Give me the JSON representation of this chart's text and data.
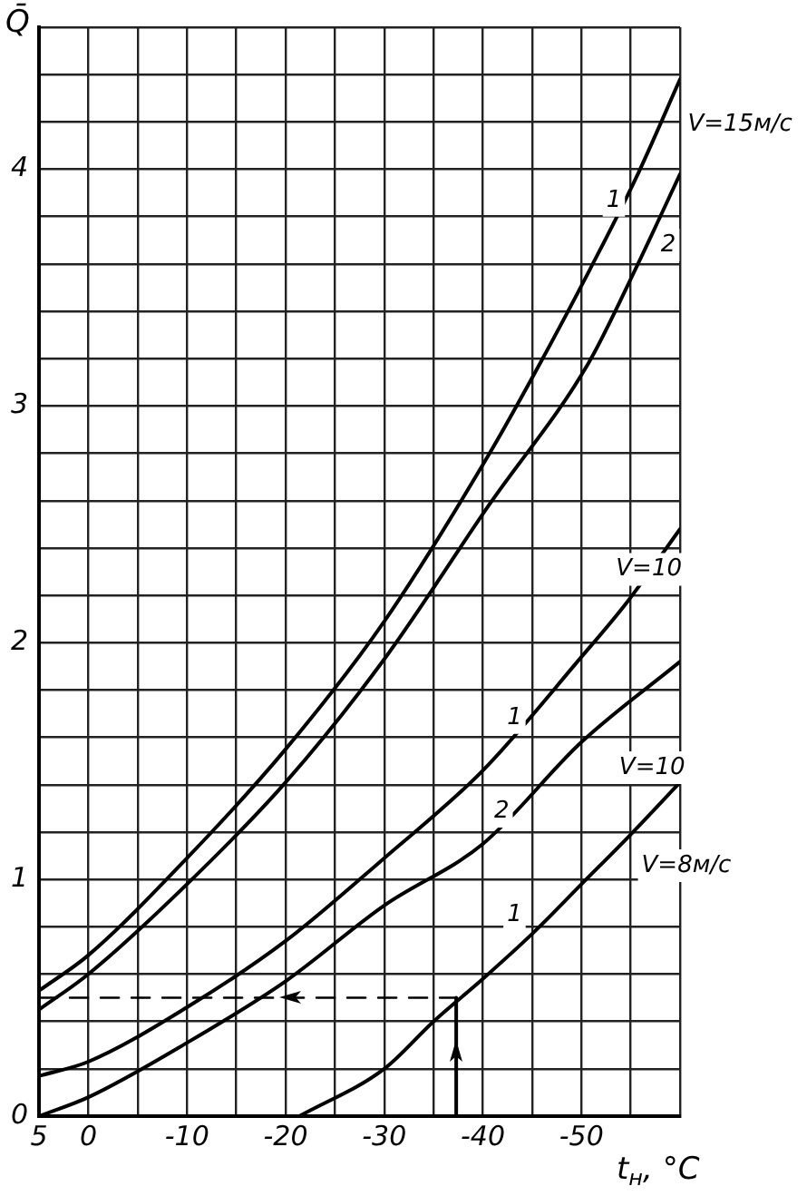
{
  "chart_data": {
    "type": "line",
    "xlabel": "t$_{н}$, °C",
    "ylabel": "Q̄",
    "xlim": [
      5,
      -60
    ],
    "ylim": [
      0,
      4.6
    ],
    "xticks": [
      5,
      0,
      {
        "value": -5,
        "label": null
      },
      -10,
      {
        "value": -15,
        "label": null
      },
      -20,
      {
        "value": -25,
        "label": null
      },
      -30,
      {
        "value": -35,
        "label": null
      },
      -40,
      {
        "value": -45,
        "label": null
      },
      -50,
      {
        "value": -55,
        "label": null
      },
      {
        "value": -60,
        "label": null
      }
    ],
    "yticks": [
      0,
      {
        "value": 0.2,
        "label": null
      },
      {
        "value": 0.4,
        "label": null
      },
      {
        "value": 0.6,
        "label": null
      },
      {
        "value": 0.8,
        "label": null
      },
      1,
      {
        "value": 1.2,
        "label": null
      },
      {
        "value": 1.4,
        "label": null
      },
      {
        "value": 1.6,
        "label": null
      },
      {
        "value": 1.8,
        "label": null
      },
      2,
      {
        "value": 2.2,
        "label": null
      },
      {
        "value": 2.4,
        "label": null
      },
      {
        "value": 2.6,
        "label": null
      },
      {
        "value": 2.8,
        "label": null
      },
      3,
      {
        "value": 3.2,
        "label": null
      },
      {
        "value": 3.4,
        "label": null
      },
      {
        "value": 3.6,
        "label": null
      },
      {
        "value": 3.8,
        "label": null
      },
      4,
      {
        "value": 4.2,
        "label": null
      },
      {
        "value": 4.4,
        "label": null
      },
      {
        "value": 4.6,
        "label": null
      }
    ],
    "grid": true,
    "marker": "none",
    "series": [
      {
        "color": "#000000",
        "x": [
          5,
          0,
          -10,
          -20,
          -30,
          -40.4,
          -45.8,
          -50.9,
          -55.5,
          -60
        ],
        "values": [
          0.53,
          0.68,
          1.09,
          1.55,
          2.09,
          2.78,
          3.18,
          3.58,
          3.96,
          4.38
        ]
      },
      {
        "color": "#000000",
        "x": [
          5,
          0,
          -10,
          -20,
          -30,
          -40.6,
          -50.7,
          -55.5,
          -60
        ],
        "values": [
          0.45,
          0.6,
          0.98,
          1.41,
          1.93,
          2.58,
          3.18,
          3.58,
          3.98
        ]
      },
      {
        "color": "#000000",
        "x": [
          5,
          0,
          -10,
          -20,
          -30,
          -40,
          -50,
          -54.6,
          -60
        ],
        "values": [
          0.17,
          0.23,
          0.46,
          0.74,
          1.09,
          1.46,
          1.94,
          2.17,
          2.48
        ]
      },
      {
        "color": "#000000",
        "x": [
          5,
          0,
          -10,
          -20,
          -30,
          -40,
          -50,
          -60
        ],
        "values": [
          0,
          0.08,
          0.31,
          0.57,
          0.89,
          1.15,
          1.58,
          1.92
        ]
      },
      {
        "color": "#000000",
        "x": [
          -21.4,
          -30,
          -35,
          -40,
          -45,
          -50,
          -55,
          -60
        ],
        "values": [
          0,
          0.2,
          0.4,
          0.58,
          0.77,
          0.98,
          1.19,
          1.41
        ]
      },
      {
        "color": "#000000",
        "x": [
          5,
          -37.3
        ],
        "values": [
          0.5,
          0.5
        ],
        "line_style": "dashed"
      },
      {
        "color": "#000000",
        "x": [
          -37.3,
          -37.3
        ],
        "values": [
          0,
          0.5
        ]
      }
    ],
    "annotations": [
      "V=15м/с",
      "1",
      "2",
      "V=10",
      "1",
      "V=10",
      "2",
      "V=8м/с",
      "1"
    ]
  }
}
